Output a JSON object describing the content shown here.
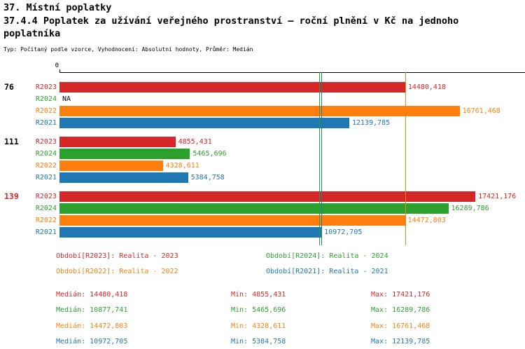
{
  "header": {
    "title": "37. Místní poplatky",
    "subtitle": "37.4.4 Poplatek za užívání veřejného prostranství – roční plnění v Kč na jednoho poplatníka",
    "meta": "Typ: Počítaný podle vzorce, Vyhodnocení: Absolutní hodnoty, Průměr: Medián"
  },
  "colors": {
    "red": "#d62728",
    "green": "#2ca02c",
    "orange": "#ff7f0e",
    "blue": "#1f77b4",
    "highlight": "#d62728",
    "na": "#000000",
    "axis": "#000000"
  },
  "chart_data": {
    "type": "bar",
    "orientation": "horizontal",
    "title": "37.4.4 Poplatek za užívání veřejného prostranství – roční plnění v Kč na jednoho poplatníka",
    "groups": [
      "76",
      "111",
      "139"
    ],
    "highlighted_group": "139",
    "axis": {
      "position": "top",
      "tick_labels": [
        "0"
      ],
      "xlim": [
        0,
        19500
      ],
      "grid": false
    },
    "series": [
      {
        "name": "R2023",
        "legend": "Období[R2023]: Realita - 2023",
        "color": "#d62728",
        "values": [
          14480.418,
          4855.431,
          17421.176
        ],
        "labels": [
          "14480,418",
          "4855,431",
          "17421,176"
        ],
        "median": 14480.418
      },
      {
        "name": "R2024",
        "legend": "Období[R2024]: Realita - 2024",
        "color": "#2ca02c",
        "values": [
          null,
          5465.696,
          16289.786
        ],
        "labels": [
          "NA",
          "5465,696",
          "16289,786"
        ],
        "median": 10877.741
      },
      {
        "name": "R2022",
        "legend": "Období[R2022]: Realita - 2022",
        "color": "#ff7f0e",
        "values": [
          16761.468,
          4328.611,
          14472.803
        ],
        "labels": [
          "16761,468",
          "4328,611",
          "14472,803"
        ],
        "median": 14472.803
      },
      {
        "name": "R2021",
        "legend": "Období[R2021]: Realita - 2021",
        "color": "#1f77b4",
        "values": [
          12139.785,
          5384.758,
          10972.705
        ],
        "labels": [
          "12139,785",
          "5384,758",
          "10972,705"
        ],
        "median": 10972.705
      }
    ],
    "legend_position": "bottom"
  },
  "stats": {
    "rows": [
      {
        "series": "R2023",
        "color": "#d62728",
        "median": "Medián: 14480,418",
        "min": "Min: 4855,431",
        "max": "Max: 17421,176"
      },
      {
        "series": "R2024",
        "color": "#2ca02c",
        "median": "Medián: 10877,741",
        "min": "Min: 5465,696",
        "max": "Max: 16289,786"
      },
      {
        "series": "R2022",
        "color": "#ff7f0e",
        "median": "Medián: 14472,803",
        "min": "Min: 4328,611",
        "max": "Max: 16761,468"
      },
      {
        "series": "R2021",
        "color": "#1f77b4",
        "median": "Medián: 10972,705",
        "min": "Min: 5384,758",
        "max": "Max: 12139,785"
      }
    ]
  }
}
